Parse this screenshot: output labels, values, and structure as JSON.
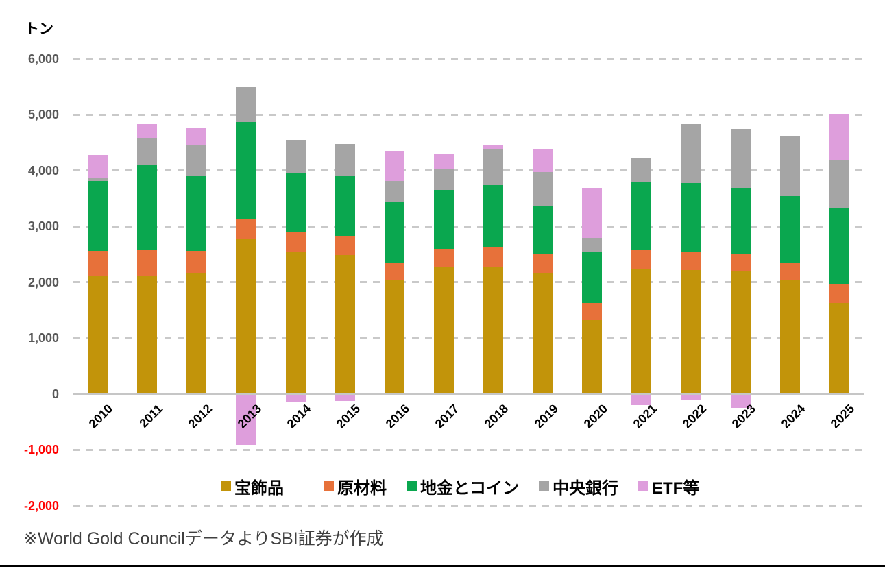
{
  "unit_label": "トン",
  "footer": {
    "source_note": "※World Gold CouncilデータよりSBI証券が作成"
  },
  "colors": {
    "jewellery": "#C2940A",
    "raw_materials": "#E7713A",
    "bars_coins": "#0AA74F",
    "central_banks": "#A5A5A5",
    "etf": "#DE9EDC",
    "axis_tick": "#595959",
    "negative_tick": "#FF0000",
    "gridline": "#C9C9C9",
    "bottom_rule": "#000000"
  },
  "chart_data": {
    "type": "bar",
    "stacked": true,
    "title": "",
    "ylabel": "トン",
    "xlabel": "",
    "grid": "horizontal-dashed",
    "legend_position": "bottom",
    "ylim": [
      -2000,
      6000
    ],
    "yticks": [
      6000,
      5000,
      4000,
      3000,
      2000,
      1000,
      0,
      -1000,
      -2000
    ],
    "categories": [
      "2010",
      "2011",
      "2012",
      "2013",
      "2014",
      "2015",
      "2016",
      "2017",
      "2018",
      "2019",
      "2020",
      "2021",
      "2022",
      "2023",
      "2024",
      "2025"
    ],
    "series": [
      {
        "name": "宝飾品",
        "color": "#C2940A",
        "values": [
          2100,
          2120,
          2160,
          2770,
          2550,
          2490,
          2025,
          2280,
          2280,
          2160,
          1320,
          2230,
          2210,
          2195,
          2025,
          1630
        ]
      },
      {
        "name": "原材料",
        "color": "#E7713A",
        "values": [
          455,
          445,
          395,
          370,
          340,
          320,
          330,
          320,
          345,
          345,
          300,
          355,
          320,
          310,
          330,
          330
        ]
      },
      {
        "name": "地金とコイン",
        "color": "#0AA74F",
        "values": [
          1250,
          1540,
          1345,
          1730,
          1070,
          1090,
          1080,
          1055,
          1115,
          860,
          925,
          1200,
          1240,
          1180,
          1190,
          1375
        ]
      },
      {
        "name": "中央銀行",
        "color": "#A5A5A5",
        "values": [
          70,
          480,
          555,
          615,
          590,
          575,
          380,
          380,
          650,
          600,
          250,
          440,
          1060,
          1055,
          1080,
          855
        ]
      },
      {
        "name": "ETF等",
        "color": "#DE9EDC",
        "values": [
          400,
          245,
          295,
          -920,
          -150,
          -130,
          535,
          265,
          75,
          420,
          895,
          -205,
          -115,
          -250,
          0,
          810
        ]
      }
    ]
  }
}
